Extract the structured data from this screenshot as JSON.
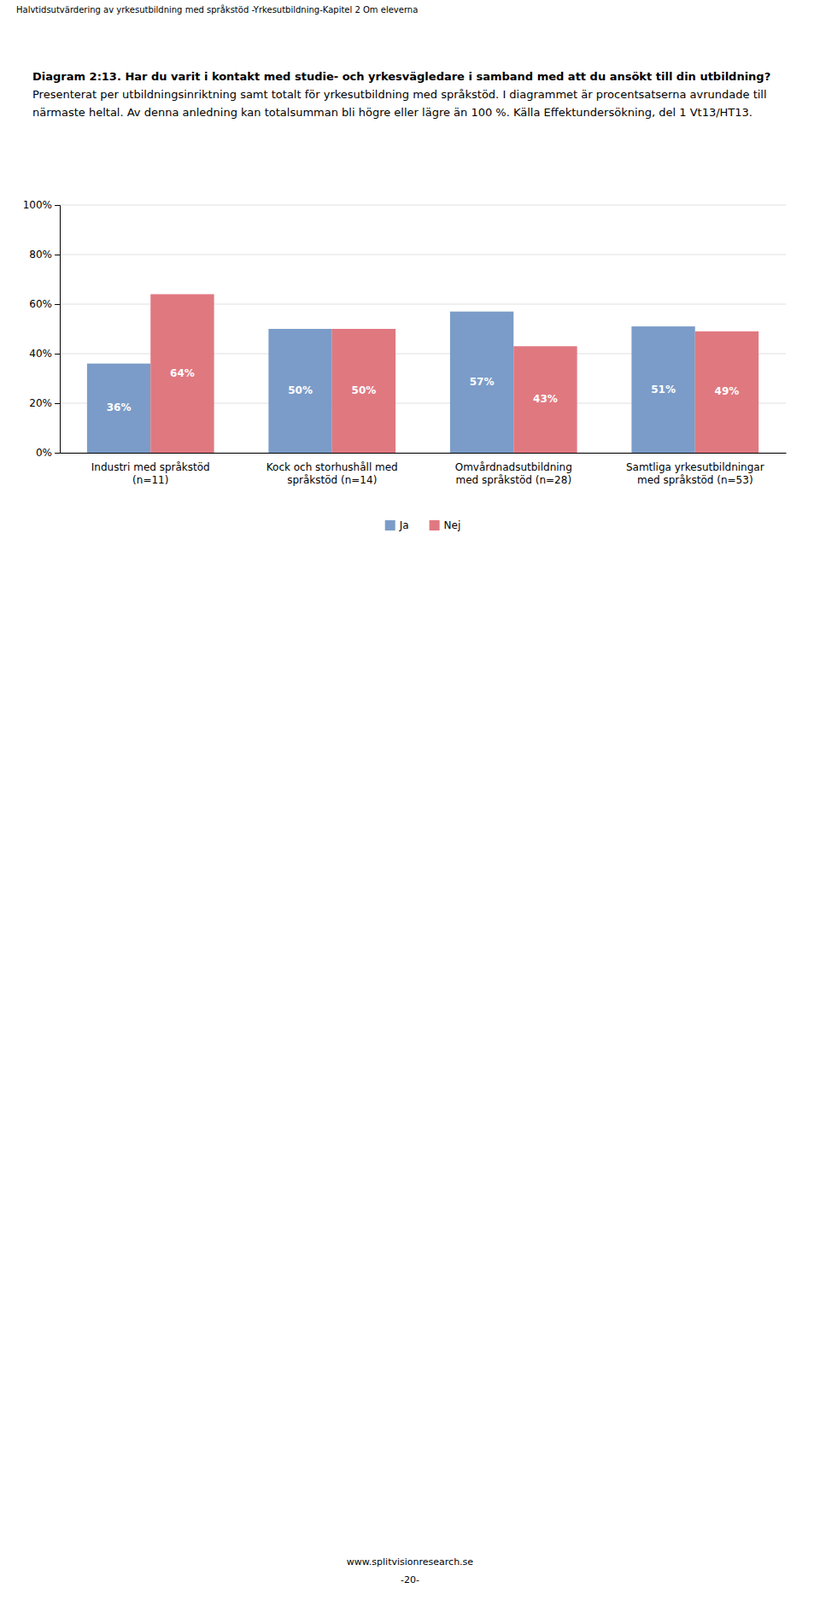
{
  "chart_data": {
    "type": "bar",
    "title": "Diagram 2:13. Har du varit i kontakt med studie- och yrkesvägledare i samband med att du ansökt till din utbildning?",
    "subtitle": "Presenterat per utbildningsinriktning samt totalt för yrkesutbildning med språkstöd. I diagrammet är procentsatserna avrundade till närmaste heltal. Av denna anledning kan totalsumman bli högre eller lägre än 100 %. Källa Effektundersökning, del 1 Vt13/HT13.",
    "annotations": [
      "Halvtidsutvärdering av yrkesutbildning med språkstöd -Yrkesutbildning-Kapitel 2 Om eleverna",
      "www.splitvisionresearch.se",
      "-20-"
    ],
    "categories": [
      "Industri med språkstöd\n(n=11)",
      "Kock och storhushåll med\nspråkstöd (n=14)",
      "Omvårdnadsutbildning\nmed språkstöd (n=28)",
      "Samtliga yrkesutbildningar\nmed språkstöd (n=53)"
    ],
    "series": [
      {
        "name": "Ja",
        "color": "#7B9CC8",
        "values": [
          36,
          50,
          57,
          51
        ],
        "value_labels": [
          "36%",
          "50%",
          "57%",
          "51%"
        ]
      },
      {
        "name": "Nej",
        "color": "#E07880",
        "values": [
          64,
          50,
          43,
          49
        ],
        "value_labels": [
          "64%",
          "50%",
          "43%",
          "49%"
        ]
      }
    ],
    "ylim": [
      0,
      100
    ],
    "yticks": [
      {
        "value": 0,
        "label": "0%"
      },
      {
        "value": 20,
        "label": "20%"
      },
      {
        "value": 40,
        "label": "40%"
      },
      {
        "value": 60,
        "label": "60%"
      },
      {
        "value": 80,
        "label": "80%"
      },
      {
        "value": 100,
        "label": "100%"
      }
    ],
    "grid": true,
    "data_labels": true,
    "legend": "bottom"
  }
}
